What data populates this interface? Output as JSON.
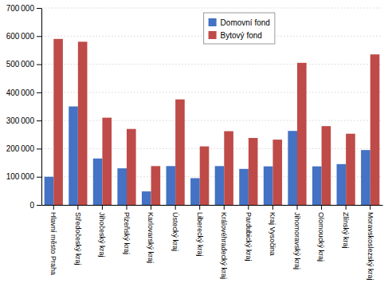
{
  "chart_data": {
    "type": "bar",
    "categories": [
      "Hlavní město Praha",
      "Středočeský kraj",
      "Jihočeský kraj",
      "Plzeňský kraj",
      "Karlovarský kraj",
      "Ústecký kraj",
      "Liberecký kraj",
      "Královéhradecký kraj",
      "Pardubický kraj",
      "Kraj Vysočina",
      "Jihomoravský kraj",
      "Olomoucký kraj",
      "Zlínský kraj",
      "Moravskoslezský kraj"
    ],
    "series": [
      {
        "name": "Domovní fond",
        "color": "#4472C4",
        "values": [
          100000,
          350000,
          165000,
          130000,
          48000,
          138000,
          95000,
          138000,
          128000,
          137000,
          263000,
          137000,
          145000,
          195000
        ]
      },
      {
        "name": "Bytový fond",
        "color": "#BE4B48",
        "values": [
          590000,
          580000,
          310000,
          270000,
          138000,
          375000,
          208000,
          262000,
          238000,
          232000,
          505000,
          280000,
          253000,
          535000
        ]
      }
    ],
    "ylim": [
      0,
      700000
    ],
    "yticks": [
      0,
      {
        "value": 100000,
        "label": "100 000"
      },
      {
        "value": 200000,
        "label": "200 000"
      },
      {
        "value": 300000,
        "label": "300 000"
      },
      {
        "value": 400000,
        "label": "400 000"
      },
      {
        "value": 500000,
        "label": "500 000"
      },
      {
        "value": 600000,
        "label": "600 000"
      },
      {
        "value": 700000,
        "label": "700 000"
      }
    ],
    "grid": true,
    "legend": "upper center"
  }
}
